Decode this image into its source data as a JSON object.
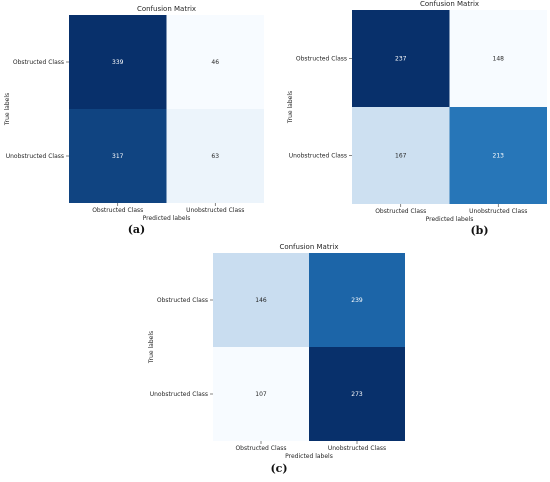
{
  "colors": {
    "scale_low": "#f7fbff",
    "scale_mid_low": "#c6dbef",
    "scale_mid": "#6baed6",
    "scale_mid_high": "#2171b5",
    "scale_high": "#08306b",
    "text_dark": "#262626",
    "text_light": "#ffffff"
  },
  "chart_data": [
    {
      "type": "heatmap",
      "caption": "(a)",
      "title": "Confusion Matrix",
      "xlabel": "Predicted labels",
      "ylabel": "True labels",
      "x_categories": [
        "Obstructed Class",
        "Unobstructed Class"
      ],
      "y_categories": [
        "Obstructed Class",
        "Unobstructed Class"
      ],
      "values": [
        [
          339,
          46
        ],
        [
          317,
          63
        ]
      ],
      "colormap": "Blues",
      "colorbar": false
    },
    {
      "type": "heatmap",
      "caption": "(b)",
      "title": "Confusion Matrix",
      "xlabel": "Predicted labels",
      "ylabel": "True labels",
      "x_categories": [
        "Obstructed Class",
        "Unobstructed Class"
      ],
      "y_categories": [
        "Obstructed Class",
        "Unobstructed Class"
      ],
      "values": [
        [
          237,
          148
        ],
        [
          167,
          213
        ]
      ],
      "colormap": "Blues",
      "colorbar": false
    },
    {
      "type": "heatmap",
      "caption": "(c)",
      "title": "Confusion Matrix",
      "xlabel": "Predicted labels",
      "ylabel": "True labels",
      "x_categories": [
        "Obstructed Class",
        "Unobstructed Class"
      ],
      "y_categories": [
        "Obstructed Class",
        "Unobstructed Class"
      ],
      "values": [
        [
          146,
          239
        ],
        [
          107,
          273
        ]
      ],
      "colormap": "Blues",
      "colorbar": false
    }
  ]
}
